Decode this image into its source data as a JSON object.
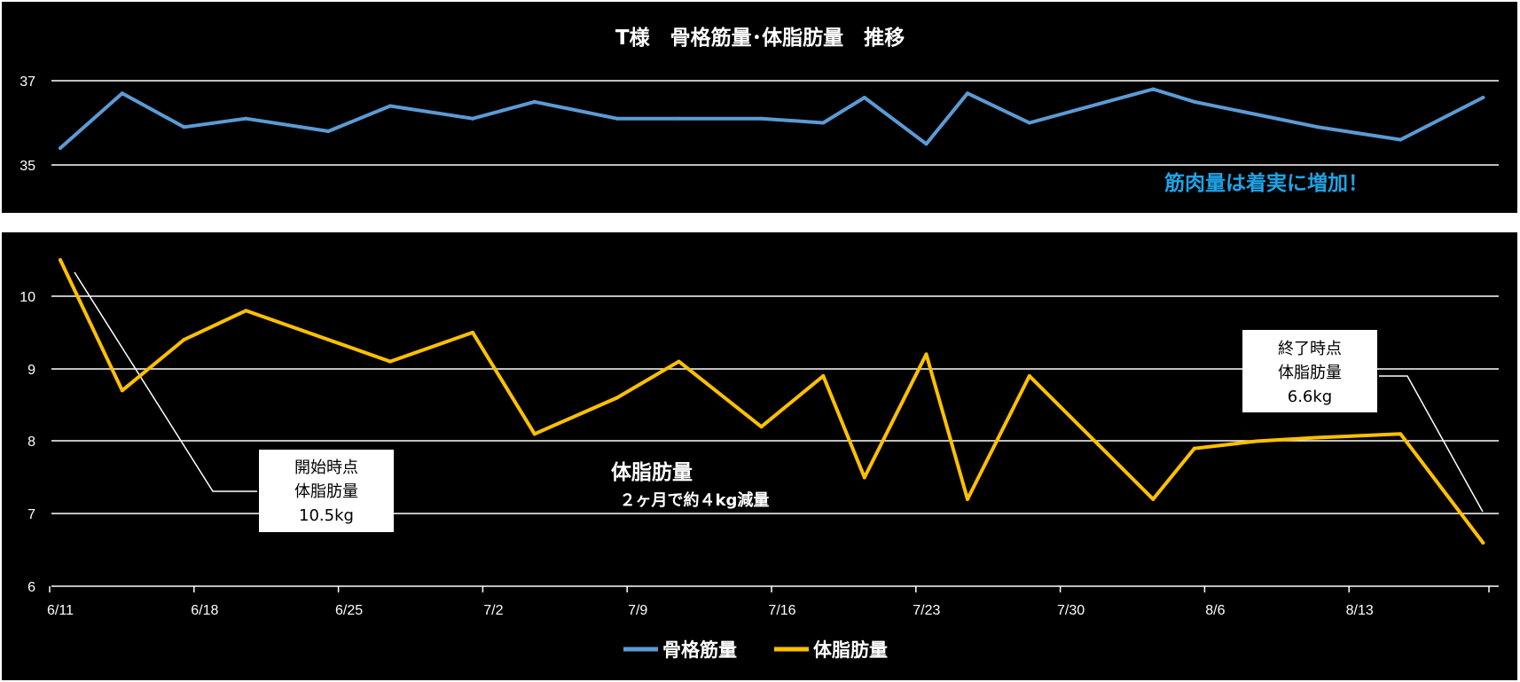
{
  "chart_data": [
    {
      "type": "line",
      "title": "T様　骨格筋量･体脂肪量　推移",
      "ylim": [
        35,
        37
      ],
      "ytick_labels": [
        "37",
        "35"
      ],
      "grid": true,
      "series": [
        {
          "name": "骨格筋量",
          "color": "#5b9bd5",
          "x": [
            "6/11",
            "6/14",
            "6/17",
            "6/20",
            "6/24",
            "6/27",
            "7/1",
            "7/4",
            "7/8",
            "7/11",
            "7/15",
            "7/18",
            "7/20",
            "7/23",
            "7/25",
            "7/28",
            "8/3",
            "8/5",
            "8/8",
            "8/11",
            "8/15",
            "8/19"
          ],
          "values": [
            35.4,
            36.7,
            35.9,
            36.1,
            35.8,
            36.4,
            36.1,
            36.5,
            36.1,
            36.1,
            36.1,
            36.0,
            36.6,
            35.5,
            36.7,
            36.0,
            36.8,
            36.5,
            36.2,
            35.9,
            35.6,
            36.6
          ]
        }
      ],
      "annotation": "筋肉量は着実に増加！"
    },
    {
      "type": "line",
      "ylim": [
        6,
        10.5
      ],
      "ytick_labels": [
        "10",
        "9",
        "8",
        "7",
        "6"
      ],
      "xtick_labels": [
        "6/11",
        "6/18",
        "6/25",
        "7/2",
        "7/9",
        "7/16",
        "7/23",
        "7/30",
        "8/6",
        "8/13"
      ],
      "grid": true,
      "series": [
        {
          "name": "体脂肪量",
          "color": "#ffc000",
          "x": [
            "6/11",
            "6/14",
            "6/17",
            "6/20",
            "6/24",
            "6/27",
            "7/1",
            "7/4",
            "7/8",
            "7/11",
            "7/15",
            "7/18",
            "7/20",
            "7/23",
            "7/25",
            "7/28",
            "8/3",
            "8/5",
            "8/8",
            "8/11",
            "8/15",
            "8/19"
          ],
          "values": [
            10.5,
            8.7,
            9.4,
            9.8,
            9.4,
            9.1,
            9.5,
            8.1,
            8.6,
            9.1,
            8.2,
            8.9,
            7.5,
            9.2,
            7.2,
            8.9,
            7.2,
            7.9,
            8.0,
            8.05,
            8.1,
            6.6
          ]
        }
      ],
      "annotations": {
        "center_title": "体脂肪量",
        "center_sub": "２ヶ月で約４kg減量",
        "start_callout": [
          "開始時点",
          "体脂肪量",
          "10.5kg"
        ],
        "end_callout": [
          "終了時点",
          "体脂肪量",
          "6.6kg"
        ]
      },
      "legend": {
        "placement": "bottom",
        "entries": [
          {
            "label": "骨格筋量",
            "color": "#5b9bd5"
          },
          {
            "label": "体脂肪量",
            "color": "#ffc000"
          }
        ]
      }
    }
  ]
}
